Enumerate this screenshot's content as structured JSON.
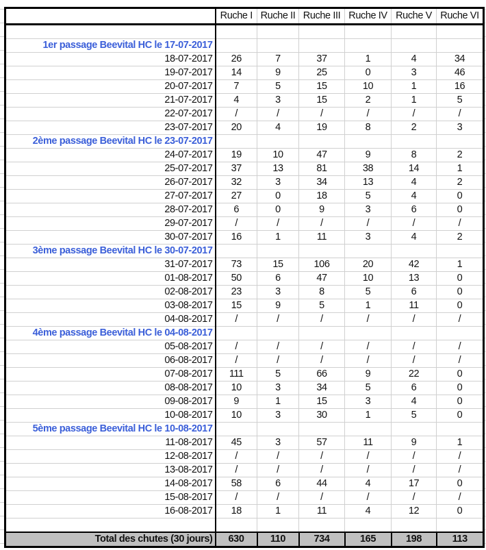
{
  "columns": [
    "Ruche I",
    "Ruche II",
    "Ruche III",
    "Ruche IV",
    "Ruche V",
    "Ruche VI"
  ],
  "sections": [
    {
      "title": "1er passage Beevital HC le 17-07-2017",
      "rows": [
        {
          "date": "18-07-2017",
          "values": [
            "26",
            "7",
            "37",
            "1",
            "4",
            "34"
          ]
        },
        {
          "date": "19-07-2017",
          "values": [
            "14",
            "9",
            "25",
            "0",
            "3",
            "46"
          ]
        },
        {
          "date": "20-07-2017",
          "values": [
            "7",
            "5",
            "15",
            "10",
            "1",
            "16"
          ]
        },
        {
          "date": "21-07-2017",
          "values": [
            "4",
            "3",
            "15",
            "2",
            "1",
            "5"
          ]
        },
        {
          "date": "22-07-2017",
          "values": [
            "/",
            "/",
            "/",
            "/",
            "/",
            "/"
          ]
        },
        {
          "date": "23-07-2017",
          "values": [
            "20",
            "4",
            "19",
            "8",
            "2",
            "3"
          ]
        }
      ]
    },
    {
      "title": "2ème passage Beevital HC le 23-07-2017",
      "rows": [
        {
          "date": "24-07-2017",
          "values": [
            "19",
            "10",
            "47",
            "9",
            "8",
            "2"
          ]
        },
        {
          "date": "25-07-2017",
          "values": [
            "37",
            "13",
            "81",
            "38",
            "14",
            "1"
          ]
        },
        {
          "date": "26-07-2017",
          "values": [
            "32",
            "3",
            "34",
            "13",
            "4",
            "2"
          ]
        },
        {
          "date": "27-07-2017",
          "values": [
            "27",
            "0",
            "18",
            "5",
            "4",
            "0"
          ]
        },
        {
          "date": "28-07-2017",
          "values": [
            "6",
            "0",
            "9",
            "3",
            "6",
            "0"
          ]
        },
        {
          "date": "29-07-2017",
          "values": [
            "/",
            "/",
            "/",
            "/",
            "/",
            "/"
          ]
        },
        {
          "date": "30-07-2017",
          "values": [
            "16",
            "1",
            "11",
            "3",
            "4",
            "2"
          ]
        }
      ]
    },
    {
      "title": "3ème passage Beevital HC le 30-07-2017",
      "rows": [
        {
          "date": "31-07-2017",
          "values": [
            "73",
            "15",
            "106",
            "20",
            "42",
            "1"
          ]
        },
        {
          "date": "01-08-2017",
          "values": [
            "50",
            "6",
            "47",
            "10",
            "13",
            "0"
          ]
        },
        {
          "date": "02-08-2017",
          "values": [
            "23",
            "3",
            "8",
            "5",
            "6",
            "0"
          ]
        },
        {
          "date": "03-08-2017",
          "values": [
            "15",
            "9",
            "5",
            "1",
            "11",
            "0"
          ]
        },
        {
          "date": "04-08-2017",
          "values": [
            "/",
            "/",
            "/",
            "/",
            "/",
            "/"
          ]
        }
      ]
    },
    {
      "title": "4ème passage Beevital HC le 04-08-2017",
      "rows": [
        {
          "date": "05-08-2017",
          "values": [
            "/",
            "/",
            "/",
            "/",
            "/",
            "/"
          ]
        },
        {
          "date": "06-08-2017",
          "values": [
            "/",
            "/",
            "/",
            "/",
            "/",
            "/"
          ]
        },
        {
          "date": "07-08-2017",
          "values": [
            "111",
            "5",
            "66",
            "9",
            "22",
            "0"
          ]
        },
        {
          "date": "08-08-2017",
          "values": [
            "10",
            "3",
            "34",
            "5",
            "6",
            "0"
          ]
        },
        {
          "date": "09-08-2017",
          "values": [
            "9",
            "1",
            "15",
            "3",
            "4",
            "0"
          ]
        },
        {
          "date": "10-08-2017",
          "values": [
            "10",
            "3",
            "30",
            "1",
            "5",
            "0"
          ]
        }
      ]
    },
    {
      "title": "5ème passage Beevital HC le 10-08-2017",
      "rows": [
        {
          "date": "11-08-2017",
          "values": [
            "45",
            "3",
            "57",
            "11",
            "9",
            "1"
          ]
        },
        {
          "date": "12-08-2017",
          "values": [
            "/",
            "/",
            "/",
            "/",
            "/",
            "/"
          ]
        },
        {
          "date": "13-08-2017",
          "values": [
            "/",
            "/",
            "/",
            "/",
            "/",
            "/"
          ]
        },
        {
          "date": "14-08-2017",
          "values": [
            "58",
            "6",
            "44",
            "4",
            "17",
            "0"
          ]
        },
        {
          "date": "15-08-2017",
          "values": [
            "/",
            "/",
            "/",
            "/",
            "/",
            "/"
          ]
        },
        {
          "date": "16-08-2017",
          "values": [
            "18",
            "1",
            "11",
            "4",
            "12",
            "0"
          ]
        }
      ]
    }
  ],
  "total": {
    "label": "Total des chutes (30 jours)",
    "values": [
      "630",
      "110",
      "734",
      "165",
      "198",
      "113"
    ]
  },
  "colors": {
    "section_title": "#3b5fd9",
    "total_bg": "#c0c0c0"
  }
}
